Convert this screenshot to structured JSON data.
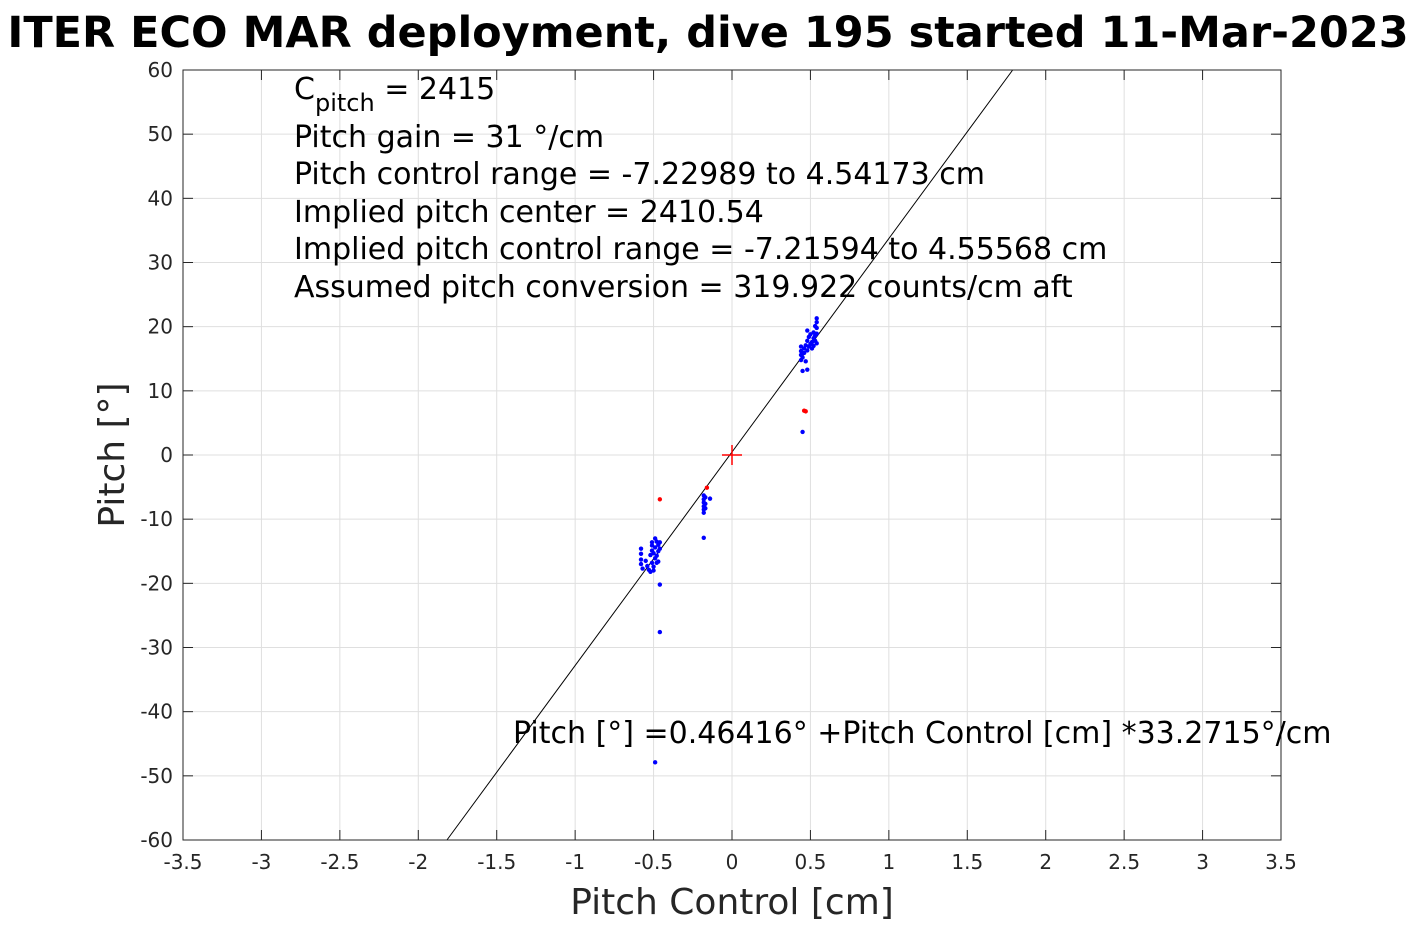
{
  "chart_data": {
    "type": "scatter",
    "title": "ITER ECO MAR deployment, dive 195 started 11-Mar-2023",
    "xlabel": "Pitch Control [cm]",
    "ylabel": "Pitch [°]",
    "xlim": [
      -3.5,
      3.5
    ],
    "ylim": [
      -60,
      60
    ],
    "xticks": [
      "-3.5",
      "-3",
      "-2.5",
      "-2",
      "-1.5",
      "-1",
      "-0.5",
      "0",
      "0.5",
      "1",
      "1.5",
      "2",
      "2.5",
      "3",
      "3.5"
    ],
    "yticks": [
      "-60",
      "-50",
      "-40",
      "-30",
      "-20",
      "-10",
      "0",
      "10",
      "20",
      "30",
      "40",
      "50",
      "60"
    ],
    "grid": true,
    "annotations": {
      "cpitch_base": "C",
      "cpitch_sub": "pitch",
      "cpitch_value": " = 2415",
      "lines": [
        "Pitch gain = 31 °/cm",
        "Pitch control range = -7.22989 to 4.54173 cm",
        "Implied pitch center = 2410.54",
        "Implied pitch control range = -7.21594 to 4.55568 cm",
        "Assumed pitch conversion = 319.922 counts/cm aft"
      ],
      "fit_label": "Pitch [°] =0.46416° +Pitch Control [cm] *33.2715°/cm"
    },
    "fit_line": {
      "intercept": 0.46416,
      "slope": 33.2715
    },
    "center_marker": {
      "x": 0,
      "y": 0,
      "color": "#ff0000"
    },
    "series": [
      {
        "color": "#0000ff",
        "points": [
          [
            -0.58,
            -14.6
          ],
          [
            -0.58,
            -15.4
          ],
          [
            -0.58,
            -16.3
          ],
          [
            -0.58,
            -17.0
          ],
          [
            -0.57,
            -17.7
          ],
          [
            -0.55,
            -16.5
          ],
          [
            -0.54,
            -17.3
          ],
          [
            -0.53,
            -17.9
          ],
          [
            -0.52,
            -18.2
          ],
          [
            -0.52,
            -15.6
          ],
          [
            -0.51,
            -14.1
          ],
          [
            -0.51,
            -13.6
          ],
          [
            -0.51,
            -14.9
          ],
          [
            -0.51,
            -16.8
          ],
          [
            -0.5,
            -17.4
          ],
          [
            -0.5,
            -18.0
          ],
          [
            -0.5,
            -15.3
          ],
          [
            -0.49,
            -13.0
          ],
          [
            -0.49,
            -14.4
          ],
          [
            -0.49,
            -16.1
          ],
          [
            -0.48,
            -16.8
          ],
          [
            -0.48,
            -13.5
          ],
          [
            -0.48,
            -15.7
          ],
          [
            -0.47,
            -14.0
          ],
          [
            -0.47,
            -15.0
          ],
          [
            -0.47,
            -16.6
          ],
          [
            -0.46,
            -13.6
          ],
          [
            -0.46,
            -14.6
          ],
          [
            -0.46,
            -20.2
          ],
          [
            -0.46,
            -27.6
          ],
          [
            -0.49,
            -47.9
          ],
          [
            -0.18,
            -6.3
          ],
          [
            -0.18,
            -6.9
          ],
          [
            -0.18,
            -7.4
          ],
          [
            -0.18,
            -8.0
          ],
          [
            -0.18,
            -8.5
          ],
          [
            -0.18,
            -9.0
          ],
          [
            -0.17,
            -6.6
          ],
          [
            -0.17,
            -7.6
          ],
          [
            -0.17,
            -8.3
          ],
          [
            -0.18,
            -12.9
          ],
          [
            -0.14,
            -6.8
          ],
          [
            0.45,
            3.6
          ],
          [
            0.45,
            13.1
          ],
          [
            0.44,
            14.8
          ],
          [
            0.44,
            15.6
          ],
          [
            0.44,
            16.2
          ],
          [
            0.44,
            16.9
          ],
          [
            0.45,
            15.2
          ],
          [
            0.46,
            15.9
          ],
          [
            0.46,
            16.6
          ],
          [
            0.47,
            17.1
          ],
          [
            0.47,
            14.6
          ],
          [
            0.48,
            13.3
          ],
          [
            0.48,
            16.3
          ],
          [
            0.48,
            17.8
          ],
          [
            0.48,
            19.4
          ],
          [
            0.49,
            16.9
          ],
          [
            0.49,
            18.4
          ],
          [
            0.5,
            17.3
          ],
          [
            0.5,
            18.8
          ],
          [
            0.51,
            16.6
          ],
          [
            0.51,
            17.6
          ],
          [
            0.52,
            18.2
          ],
          [
            0.52,
            17.0
          ],
          [
            0.52,
            19.1
          ],
          [
            0.53,
            17.8
          ],
          [
            0.53,
            18.6
          ],
          [
            0.53,
            20.1
          ],
          [
            0.54,
            17.4
          ],
          [
            0.54,
            18.9
          ],
          [
            0.54,
            19.8
          ],
          [
            0.54,
            20.7
          ],
          [
            0.54,
            21.3
          ]
        ]
      },
      {
        "color": "#ff0000",
        "points": [
          [
            -0.46,
            -6.9
          ],
          [
            -0.16,
            -5.1
          ],
          [
            0.46,
            6.9
          ],
          [
            0.47,
            6.8
          ]
        ]
      }
    ]
  }
}
